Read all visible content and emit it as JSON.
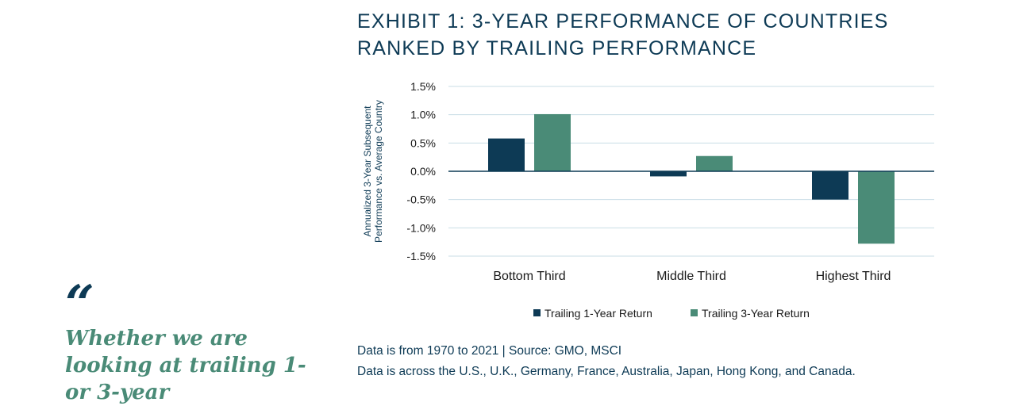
{
  "quote": {
    "mark": "“",
    "text": "Whether we are looking at trailing 1- or 3-year"
  },
  "exhibit": {
    "title": "EXHIBIT 1: 3-YEAR PERFORMANCE OF COUNTRIES RANKED BY TRAILING PERFORMANCE"
  },
  "footnotes": {
    "line1": "Data is from 1970 to 2021 | Source: GMO, MSCI",
    "line2": "Data is across the U.S., U.K., Germany, France, Australia, Japan, Hong Kong, and Canada."
  },
  "colors": {
    "series1": "#0d3a55",
    "series2": "#4a8b77",
    "grid": "#c8dde6",
    "zero_line": "#0d3a55"
  },
  "chart_data": {
    "type": "bar",
    "title": "EXHIBIT 1: 3-YEAR PERFORMANCE OF COUNTRIES RANKED BY TRAILING PERFORMANCE",
    "categories": [
      "Bottom Third",
      "Middle Third",
      "Highest Third"
    ],
    "series": [
      {
        "name": "Trailing 1-Year Return",
        "values": [
          0.58,
          -0.09,
          -0.5
        ]
      },
      {
        "name": "Trailing 3-Year Return",
        "values": [
          1.01,
          0.27,
          -1.28
        ]
      }
    ],
    "ylabel": "Annualized 3-Year Subsequent Performance vs. Average Country",
    "ylabel_lines": [
      "Annualized 3-Year Subsequent",
      "Performance vs. Average Country"
    ],
    "xlabel": "",
    "ylim": [
      -1.5,
      1.5
    ],
    "yticks": [
      1.5,
      1.0,
      0.5,
      0.0,
      -0.5,
      -1.0,
      -1.5
    ],
    "ytick_labels": [
      "1.5%",
      "1.0%",
      "0.5%",
      "0.0%",
      "-0.5%",
      "-1.0%",
      "-1.5%"
    ],
    "grid": true,
    "legend_position": "bottom"
  }
}
